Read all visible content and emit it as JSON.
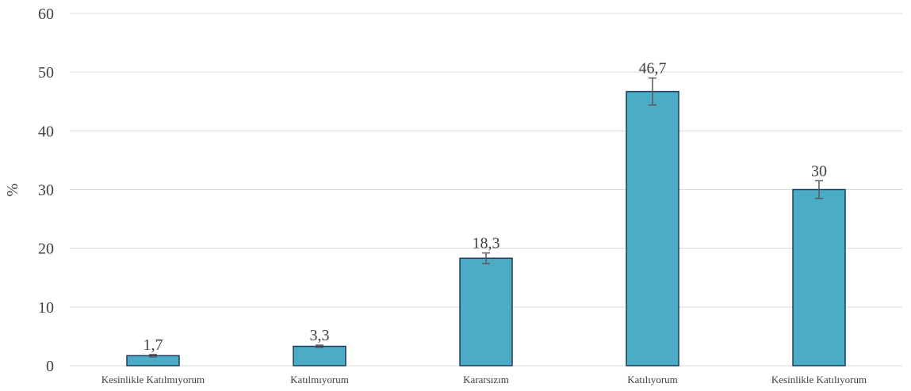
{
  "chart_data": {
    "type": "bar",
    "title": "",
    "xlabel": "",
    "ylabel": "%",
    "ylim": [
      0,
      60
    ],
    "yticks": [
      0,
      10,
      20,
      30,
      40,
      50,
      60
    ],
    "grid": true,
    "legend": "none",
    "categories": [
      "Kesinlikle Katılmıyorum",
      "Katılmıyorum",
      "Kararsızım",
      "Katılıyorum",
      "Kesinlikle Katılıyorum"
    ],
    "values": [
      1.7,
      3.3,
      18.3,
      46.7,
      30
    ],
    "data_labels": [
      "1,7",
      "3,3",
      "18,3",
      "46,7",
      "30"
    ],
    "error_bars": [
      0.2,
      0.2,
      0.9,
      2.3,
      1.5
    ],
    "colors": {
      "bar_fill": "#4BACC6",
      "bar_stroke": "#1F3A5C",
      "error_bar": "#595959",
      "grid": "#D9D9D9",
      "text": "#404040"
    }
  }
}
